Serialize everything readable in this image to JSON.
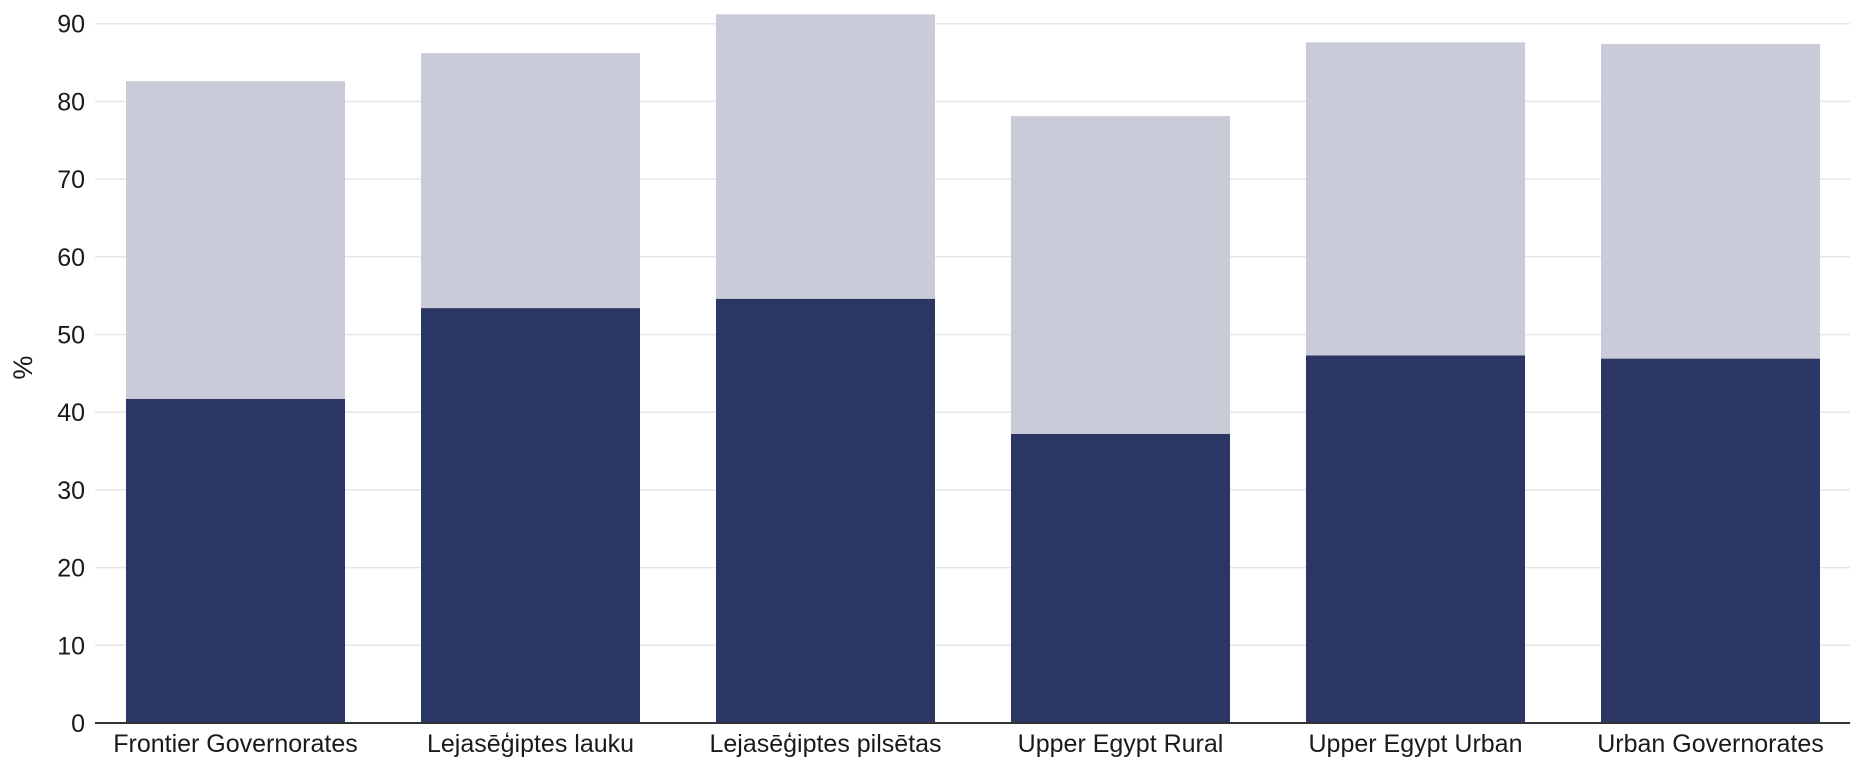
{
  "chart_data": {
    "type": "bar",
    "stacked": true,
    "categories": [
      "Frontier Governorates",
      "Lejasēģiptes lauku",
      "Lejasēģiptes pilsētas",
      "Upper Egypt Rural",
      "Upper Egypt Urban",
      "Urban Governorates"
    ],
    "series": [
      {
        "color": "#2b3664",
        "values": [
          41.7,
          53.4,
          54.6,
          37.2,
          47.3,
          46.9
        ]
      },
      {
        "color": "#c9cbd8",
        "values": [
          40.9,
          32.8,
          36.6,
          40.9,
          40.3,
          40.5
        ]
      }
    ],
    "title": "",
    "xlabel": "",
    "ylabel": "%",
    "ylim": [
      0,
      92
    ],
    "yticks": [
      0,
      10,
      20,
      30,
      40,
      50,
      60,
      70,
      80,
      90
    ],
    "grid": true,
    "legend": "none"
  }
}
